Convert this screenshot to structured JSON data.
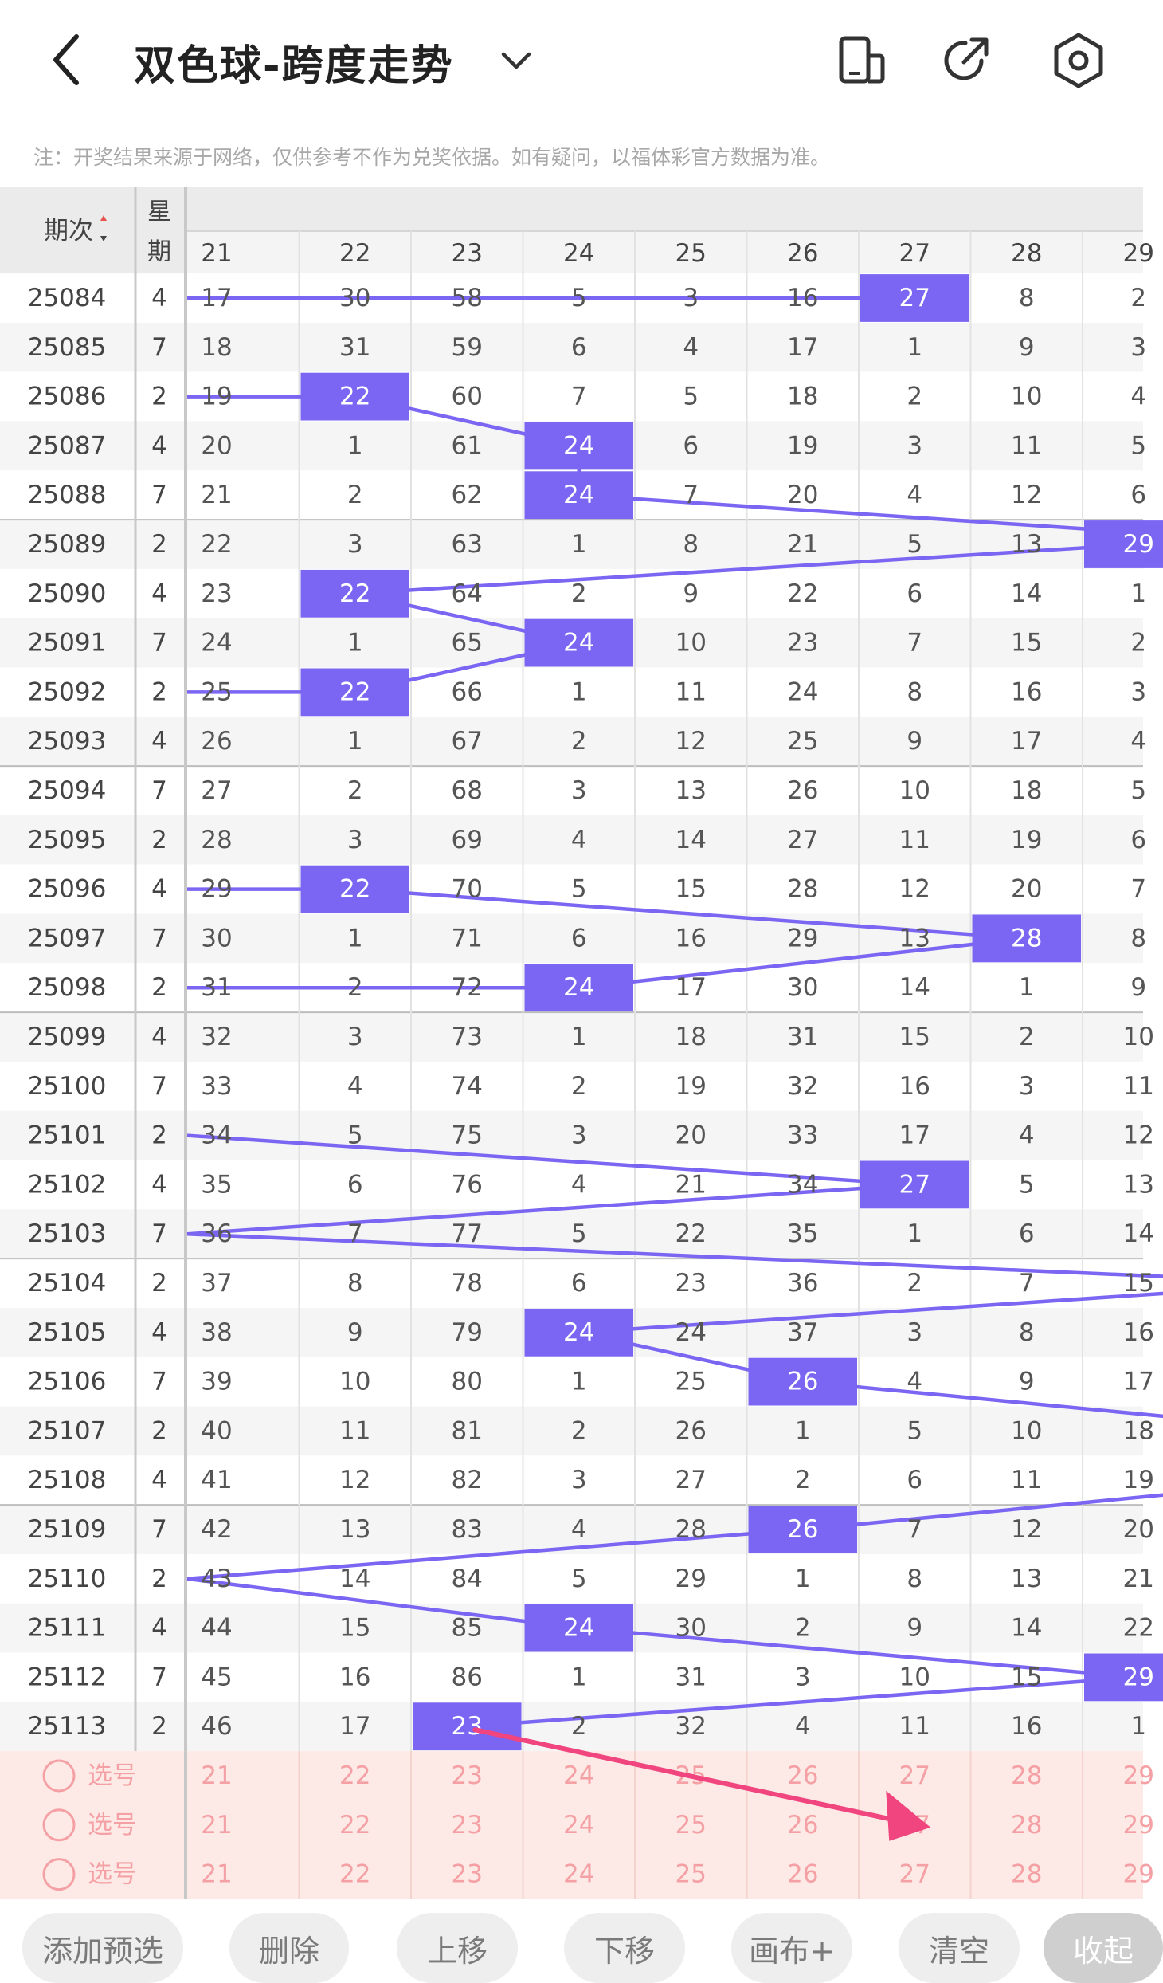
{
  "header": {
    "title": "双色球-跨度走势",
    "notice": "注：开奖结果来源于网络，仅供参考不作为兑奖依据。如有疑问，以福体彩官方数据为准。"
  },
  "table": {
    "col_period": "期次",
    "col_week_1": "星",
    "col_week_2": "期",
    "span_columns": [
      "21",
      "22",
      "23",
      "24",
      "25",
      "26",
      "27",
      "28",
      "29"
    ],
    "rows": [
      {
        "period": "25084",
        "week": "4",
        "cells": [
          "17",
          "30",
          "58",
          "5",
          "3",
          "16",
          "27",
          "8",
          "2"
        ],
        "hit": 6
      },
      {
        "period": "25085",
        "week": "7",
        "cells": [
          "18",
          "31",
          "59",
          "6",
          "4",
          "17",
          "1",
          "9",
          "3"
        ],
        "hit": -1
      },
      {
        "period": "25086",
        "week": "2",
        "cells": [
          "19",
          "22",
          "60",
          "7",
          "5",
          "18",
          "2",
          "10",
          "4"
        ],
        "hit": 1
      },
      {
        "period": "25087",
        "week": "4",
        "cells": [
          "20",
          "1",
          "61",
          "24",
          "6",
          "19",
          "3",
          "11",
          "5"
        ],
        "hit": 3
      },
      {
        "period": "25088",
        "week": "7",
        "cells": [
          "21",
          "2",
          "62",
          "24",
          "7",
          "20",
          "4",
          "12",
          "6"
        ],
        "hit": 3
      },
      {
        "period": "25089",
        "week": "2",
        "cells": [
          "22",
          "3",
          "63",
          "1",
          "8",
          "21",
          "5",
          "13",
          "29"
        ],
        "hit": 8
      },
      {
        "period": "25090",
        "week": "4",
        "cells": [
          "23",
          "22",
          "64",
          "2",
          "9",
          "22",
          "6",
          "14",
          "1"
        ],
        "hit": 1
      },
      {
        "period": "25091",
        "week": "7",
        "cells": [
          "24",
          "1",
          "65",
          "24",
          "10",
          "23",
          "7",
          "15",
          "2"
        ],
        "hit": 3
      },
      {
        "period": "25092",
        "week": "2",
        "cells": [
          "25",
          "22",
          "66",
          "1",
          "11",
          "24",
          "8",
          "16",
          "3"
        ],
        "hit": 1
      },
      {
        "period": "25093",
        "week": "4",
        "cells": [
          "26",
          "1",
          "67",
          "2",
          "12",
          "25",
          "9",
          "17",
          "4"
        ],
        "hit": -1
      },
      {
        "period": "25094",
        "week": "7",
        "cells": [
          "27",
          "2",
          "68",
          "3",
          "13",
          "26",
          "10",
          "18",
          "5"
        ],
        "hit": -1
      },
      {
        "period": "25095",
        "week": "2",
        "cells": [
          "28",
          "3",
          "69",
          "4",
          "14",
          "27",
          "11",
          "19",
          "6"
        ],
        "hit": -1
      },
      {
        "period": "25096",
        "week": "4",
        "cells": [
          "29",
          "22",
          "70",
          "5",
          "15",
          "28",
          "12",
          "20",
          "7"
        ],
        "hit": 1
      },
      {
        "period": "25097",
        "week": "7",
        "cells": [
          "30",
          "1",
          "71",
          "6",
          "16",
          "29",
          "13",
          "28",
          "8"
        ],
        "hit": 7
      },
      {
        "period": "25098",
        "week": "2",
        "cells": [
          "31",
          "2",
          "72",
          "24",
          "17",
          "30",
          "14",
          "1",
          "9"
        ],
        "hit": 3
      },
      {
        "period": "25099",
        "week": "4",
        "cells": [
          "32",
          "3",
          "73",
          "1",
          "18",
          "31",
          "15",
          "2",
          "10"
        ],
        "hit": -1
      },
      {
        "period": "25100",
        "week": "7",
        "cells": [
          "33",
          "4",
          "74",
          "2",
          "19",
          "32",
          "16",
          "3",
          "11"
        ],
        "hit": -1
      },
      {
        "period": "25101",
        "week": "2",
        "cells": [
          "34",
          "5",
          "75",
          "3",
          "20",
          "33",
          "17",
          "4",
          "12"
        ],
        "hit": -1
      },
      {
        "period": "25102",
        "week": "4",
        "cells": [
          "35",
          "6",
          "76",
          "4",
          "21",
          "34",
          "27",
          "5",
          "13"
        ],
        "hit": 6
      },
      {
        "period": "25103",
        "week": "7",
        "cells": [
          "36",
          "7",
          "77",
          "5",
          "22",
          "35",
          "1",
          "6",
          "14"
        ],
        "hit": -1
      },
      {
        "period": "25104",
        "week": "2",
        "cells": [
          "37",
          "8",
          "78",
          "6",
          "23",
          "36",
          "2",
          "7",
          "15"
        ],
        "hit": -1
      },
      {
        "period": "25105",
        "week": "4",
        "cells": [
          "38",
          "9",
          "79",
          "24",
          "24",
          "37",
          "3",
          "8",
          "16"
        ],
        "hit": 3
      },
      {
        "period": "25106",
        "week": "7",
        "cells": [
          "39",
          "10",
          "80",
          "1",
          "25",
          "26",
          "4",
          "9",
          "17"
        ],
        "hit": 5
      },
      {
        "period": "25107",
        "week": "2",
        "cells": [
          "40",
          "11",
          "81",
          "2",
          "26",
          "1",
          "5",
          "10",
          "18"
        ],
        "hit": -1
      },
      {
        "period": "25108",
        "week": "4",
        "cells": [
          "41",
          "12",
          "82",
          "3",
          "27",
          "2",
          "6",
          "11",
          "19"
        ],
        "hit": -1
      },
      {
        "period": "25109",
        "week": "7",
        "cells": [
          "42",
          "13",
          "83",
          "4",
          "28",
          "26",
          "7",
          "12",
          "20"
        ],
        "hit": 5
      },
      {
        "period": "25110",
        "week": "2",
        "cells": [
          "43",
          "14",
          "84",
          "5",
          "29",
          "1",
          "8",
          "13",
          "21"
        ],
        "hit": -1
      },
      {
        "period": "25111",
        "week": "4",
        "cells": [
          "44",
          "15",
          "85",
          "24",
          "30",
          "2",
          "9",
          "14",
          "22"
        ],
        "hit": 3
      },
      {
        "period": "25112",
        "week": "7",
        "cells": [
          "45",
          "16",
          "86",
          "1",
          "31",
          "3",
          "10",
          "15",
          "29"
        ],
        "hit": 8
      },
      {
        "period": "25113",
        "week": "2",
        "cells": [
          "46",
          "17",
          "23",
          "2",
          "32",
          "4",
          "11",
          "16",
          "1"
        ],
        "hit": 2
      }
    ],
    "trend_line_waypoints": [
      {
        "row": 0,
        "col": -0.5
      },
      {
        "row": 0,
        "col": 6
      },
      {
        "row": 2,
        "col": -0.5
      },
      {
        "row": 2,
        "col": 1
      },
      {
        "row": 3,
        "col": 3
      },
      {
        "row": 4,
        "col": 3
      },
      {
        "row": 5,
        "col": 9.6
      },
      {
        "row": 5,
        "col": 8
      },
      {
        "row": 6,
        "col": 1
      },
      {
        "row": 7,
        "col": 3
      },
      {
        "row": 8,
        "col": 1
      },
      {
        "row": 8,
        "col": -0.5
      },
      {
        "row": 12,
        "col": -0.5
      },
      {
        "row": 12,
        "col": 1
      },
      {
        "row": 13,
        "col": 7
      },
      {
        "row": 14,
        "col": 3
      },
      {
        "row": 14,
        "col": -0.5
      },
      {
        "row": 17,
        "col": -0.5
      },
      {
        "row": 18,
        "col": 6
      },
      {
        "row": 19,
        "col": -0.5
      },
      {
        "row": 19,
        "col": -0.5
      },
      {
        "row": 20,
        "col": 9.6
      },
      {
        "row": 20,
        "col": 9.6
      },
      {
        "row": 21,
        "col": 3
      },
      {
        "row": 22,
        "col": 5
      },
      {
        "row": 23,
        "col": 9.6
      },
      {
        "row": 24,
        "col": 9.6
      },
      {
        "row": 25,
        "col": 5
      },
      {
        "row": 26,
        "col": -0.5
      },
      {
        "row": 26,
        "col": -0.5
      },
      {
        "row": 27,
        "col": 3
      },
      {
        "row": 28,
        "col": 8
      },
      {
        "row": 29,
        "col": 2
      }
    ],
    "select_rows": [
      {
        "label": "选号",
        "cells": [
          "21",
          "22",
          "23",
          "24",
          "25",
          "26",
          "27",
          "28",
          "29"
        ]
      },
      {
        "label": "选号",
        "cells": [
          "21",
          "22",
          "23",
          "24",
          "25",
          "26",
          "27",
          "28",
          "29"
        ]
      },
      {
        "label": "选号",
        "cells": [
          "21",
          "22",
          "23",
          "24",
          "25",
          "26",
          "27",
          "28",
          "29"
        ]
      }
    ]
  },
  "toolbar": {
    "buttons": [
      "添加预选",
      "删除",
      "上移",
      "下移",
      "画布+",
      "清空",
      "收起"
    ]
  },
  "colors": {
    "hit_fill": "#7A66F2",
    "line": "#7A66F2",
    "arrow": "#F0457E",
    "select_bg": "#FDEAE6",
    "select_text": "#F4A0A4",
    "sort_up": "#E8524F"
  },
  "icons": [
    "back-arrow-icon",
    "chevron-down-icon",
    "device-icon",
    "share-icon",
    "settings-hexagon-icon",
    "sort-icon",
    "radio-circle-icon"
  ]
}
